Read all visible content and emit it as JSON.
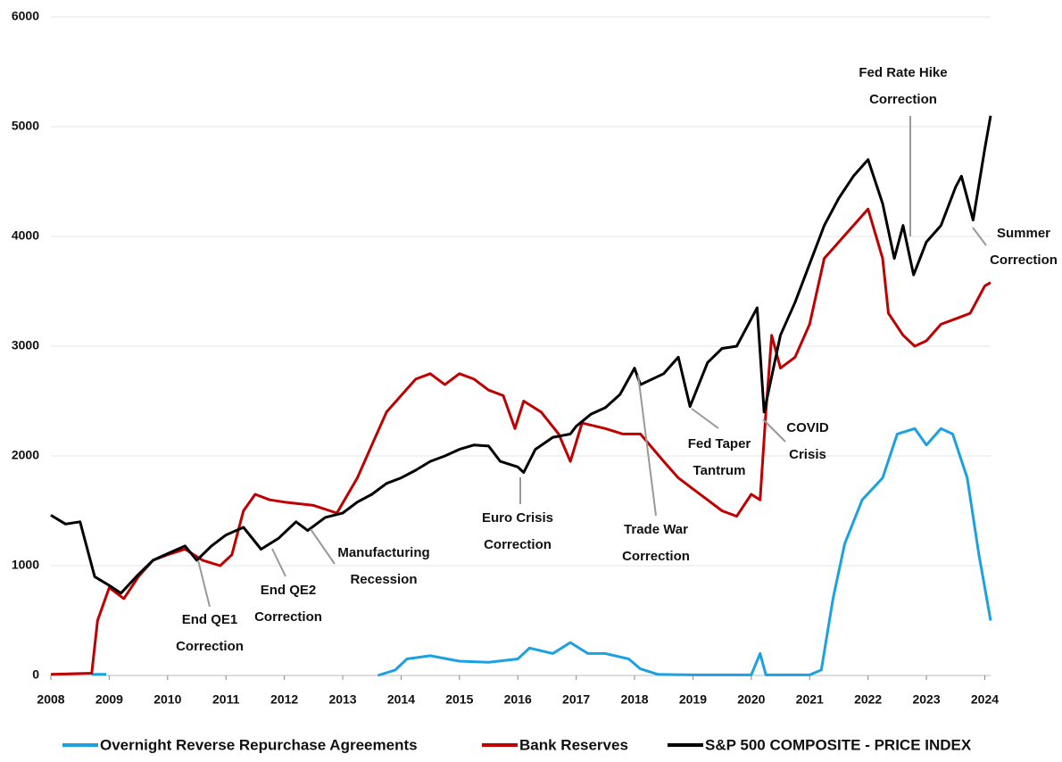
{
  "chart_data": {
    "type": "line",
    "xlim": [
      2008,
      2024.1
    ],
    "xticks": [
      2008,
      2009,
      2010,
      2011,
      2012,
      2013,
      2014,
      2015,
      2016,
      2017,
      2018,
      2019,
      2020,
      2021,
      2022,
      2023,
      2024
    ],
    "ylim": [
      0,
      6000
    ],
    "yticks": [
      0,
      1000,
      2000,
      3000,
      4000,
      5000,
      6000
    ],
    "grid": true,
    "legend": "bottom",
    "series": [
      {
        "name": "Overnight Reverse Repurchase Agreements",
        "color": "#1ba1e2",
        "x": [
          2008.7,
          2008.95,
          2009.0,
          2013.6,
          2013.9,
          2014.1,
          2014.5,
          2015.0,
          2015.5,
          2016.0,
          2016.2,
          2016.6,
          2016.9,
          2017.2,
          2017.5,
          2017.9,
          2018.1,
          2018.4,
          2019.0,
          2020.0,
          2020.15,
          2020.25,
          2021.0,
          2021.2,
          2021.4,
          2021.6,
          2021.9,
          2022.25,
          2022.5,
          2022.8,
          2023.0,
          2023.25,
          2023.45,
          2023.7,
          2023.9,
          2024.0,
          2024.1
        ],
        "values": [
          10,
          10,
          null,
          0,
          50,
          150,
          180,
          130,
          120,
          150,
          250,
          200,
          300,
          200,
          200,
          150,
          60,
          10,
          5,
          5,
          200,
          5,
          5,
          50,
          700,
          1200,
          1600,
          1800,
          2200,
          2250,
          2100,
          2250,
          2200,
          1800,
          1100,
          800,
          500
        ]
      },
      {
        "name": "Bank Reserves",
        "color": "#c00000",
        "x": [
          2008.0,
          2008.7,
          2008.8,
          2009.0,
          2009.25,
          2009.5,
          2009.75,
          2010.0,
          2010.3,
          2010.6,
          2010.9,
          2011.1,
          2011.3,
          2011.5,
          2011.75,
          2012.0,
          2012.5,
          2012.9,
          2013.25,
          2013.5,
          2013.75,
          2014.0,
          2014.25,
          2014.5,
          2014.75,
          2015.0,
          2015.25,
          2015.5,
          2015.75,
          2015.95,
          2016.1,
          2016.4,
          2016.7,
          2016.9,
          2017.1,
          2017.5,
          2017.8,
          2018.1,
          2018.5,
          2018.75,
          2019.0,
          2019.25,
          2019.5,
          2019.75,
          2020.0,
          2020.15,
          2020.25,
          2020.35,
          2020.5,
          2020.75,
          2021.0,
          2021.25,
          2021.5,
          2021.75,
          2022.0,
          2022.25,
          2022.35,
          2022.6,
          2022.8,
          2023.0,
          2023.25,
          2023.5,
          2023.75,
          2024.0,
          2024.1
        ],
        "values": [
          10,
          20,
          500,
          800,
          700,
          900,
          1050,
          1100,
          1150,
          1050,
          1000,
          1100,
          1500,
          1650,
          1600,
          1580,
          1550,
          1480,
          1800,
          2100,
          2400,
          2550,
          2700,
          2750,
          2650,
          2750,
          2700,
          2600,
          2550,
          2250,
          2500,
          2400,
          2200,
          1950,
          2300,
          2250,
          2200,
          2200,
          1950,
          1800,
          1700,
          1600,
          1500,
          1450,
          1650,
          1600,
          2400,
          3100,
          2800,
          2900,
          3200,
          3800,
          3950,
          4100,
          4250,
          3800,
          3300,
          3100,
          3000,
          3050,
          3200,
          3250,
          3300,
          3550,
          3580
        ]
      },
      {
        "name": "S&P 500 COMPOSITE - PRICE INDEX",
        "color": "#000000",
        "x": [
          2008.0,
          2008.25,
          2008.5,
          2008.75,
          2009.0,
          2009.2,
          2009.5,
          2009.75,
          2010.0,
          2010.3,
          2010.5,
          2010.75,
          2011.0,
          2011.3,
          2011.6,
          2011.9,
          2012.2,
          2012.4,
          2012.7,
          2013.0,
          2013.25,
          2013.5,
          2013.75,
          2014.0,
          2014.25,
          2014.5,
          2014.75,
          2015.0,
          2015.25,
          2015.5,
          2015.7,
          2016.0,
          2016.1,
          2016.3,
          2016.6,
          2016.9,
          2017.0,
          2017.25,
          2017.5,
          2017.75,
          2018.0,
          2018.1,
          2018.5,
          2018.75,
          2018.95,
          2019.25,
          2019.5,
          2019.75,
          2020.1,
          2020.22,
          2020.5,
          2020.75,
          2021.0,
          2021.25,
          2021.5,
          2021.75,
          2022.0,
          2022.25,
          2022.45,
          2022.6,
          2022.78,
          2023.0,
          2023.25,
          2023.5,
          2023.6,
          2023.8,
          2024.0,
          2024.1
        ],
        "values": [
          1460,
          1380,
          1400,
          900,
          820,
          750,
          920,
          1050,
          1110,
          1180,
          1050,
          1180,
          1280,
          1350,
          1150,
          1250,
          1400,
          1320,
          1440,
          1480,
          1580,
          1650,
          1750,
          1800,
          1870,
          1950,
          2000,
          2060,
          2100,
          2090,
          1950,
          1900,
          1850,
          2060,
          2170,
          2200,
          2270,
          2380,
          2440,
          2560,
          2800,
          2650,
          2750,
          2900,
          2450,
          2850,
          2980,
          3000,
          3350,
          2400,
          3100,
          3400,
          3750,
          4100,
          4350,
          4550,
          4700,
          4300,
          3800,
          4100,
          3650,
          3950,
          4100,
          4450,
          4550,
          4150,
          4800,
          5100
        ]
      }
    ],
    "annotations": [
      {
        "lines": [
          "End QE1",
          "Correction"
        ]
      },
      {
        "lines": [
          "End QE2",
          "Correction"
        ]
      },
      {
        "lines": [
          "Manufacturing",
          "Recession"
        ]
      },
      {
        "lines": [
          "Euro Crisis",
          "Correction"
        ]
      },
      {
        "lines": [
          "Trade War",
          "Correction"
        ]
      },
      {
        "lines": [
          "Fed Taper",
          "Tantrum"
        ]
      },
      {
        "lines": [
          "COVID",
          "Crisis"
        ]
      },
      {
        "lines": [
          "Fed Rate Hike",
          "Correction"
        ]
      },
      {
        "lines": [
          "Summer",
          "Correction"
        ]
      }
    ]
  }
}
